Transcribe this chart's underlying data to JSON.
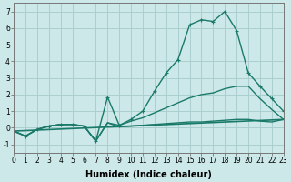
{
  "xlabel": "Humidex (Indice chaleur)",
  "bg_color": "#cce8e8",
  "grid_color": "#aacece",
  "line_color": "#1a7a6a",
  "xlim": [
    0,
    23
  ],
  "ylim": [
    -1.5,
    7.5
  ],
  "xticks": [
    0,
    1,
    2,
    3,
    4,
    5,
    6,
    7,
    8,
    9,
    10,
    11,
    12,
    13,
    14,
    15,
    16,
    17,
    18,
    19,
    20,
    21,
    22,
    23
  ],
  "yticks": [
    -1,
    0,
    1,
    2,
    3,
    4,
    5,
    6,
    7
  ],
  "series": [
    {
      "x": [
        0,
        1,
        2,
        3,
        4,
        5,
        6,
        7,
        8,
        9,
        10,
        11,
        12,
        13,
        14,
        15,
        16,
        17,
        18,
        19,
        20,
        21,
        22,
        23
      ],
      "y": [
        -0.2,
        -0.5,
        -0.1,
        0.1,
        0.2,
        0.2,
        0.1,
        -0.8,
        1.85,
        0.15,
        0.5,
        1.0,
        2.2,
        3.3,
        4.1,
        6.2,
        6.5,
        6.4,
        7.0,
        5.85,
        3.3,
        2.5,
        1.75,
        1.0
      ],
      "marker": "+",
      "markersize": 3.5,
      "linewidth": 1.0
    },
    {
      "x": [
        0,
        1,
        2,
        3,
        4,
        5,
        6,
        7,
        8,
        9,
        10,
        11,
        12,
        13,
        14,
        15,
        16,
        17,
        18,
        19,
        20,
        21,
        22,
        23
      ],
      "y": [
        -0.2,
        -0.5,
        -0.1,
        0.1,
        0.2,
        0.2,
        0.1,
        -0.8,
        0.3,
        0.15,
        0.4,
        0.6,
        0.9,
        1.2,
        1.5,
        1.8,
        2.0,
        2.1,
        2.35,
        2.5,
        2.5,
        1.75,
        1.1,
        0.5
      ],
      "marker": null,
      "markersize": 0,
      "linewidth": 1.0
    },
    {
      "x": [
        0,
        1,
        2,
        3,
        4,
        5,
        6,
        7,
        8,
        9,
        10,
        11,
        12,
        13,
        14,
        15,
        16,
        17,
        18,
        19,
        20,
        21,
        22,
        23
      ],
      "y": [
        -0.2,
        -0.5,
        -0.1,
        0.1,
        0.2,
        0.2,
        0.1,
        -0.8,
        0.3,
        0.05,
        0.1,
        0.15,
        0.2,
        0.25,
        0.3,
        0.35,
        0.35,
        0.4,
        0.45,
        0.5,
        0.5,
        0.4,
        0.35,
        0.5
      ],
      "marker": null,
      "markersize": 0,
      "linewidth": 1.0
    },
    {
      "x": [
        0,
        23
      ],
      "y": [
        -0.2,
        0.5
      ],
      "marker": null,
      "markersize": 0,
      "linewidth": 1.2
    }
  ],
  "tick_fontsize": 5.5,
  "label_fontsize": 7
}
